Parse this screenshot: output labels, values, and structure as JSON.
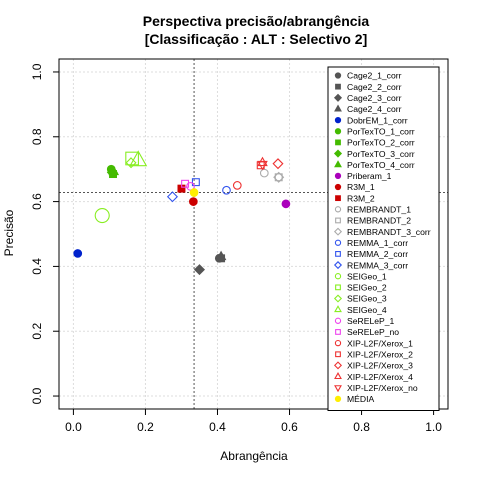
{
  "chart_data": {
    "type": "scatter",
    "title": "Perspectiva precisão/abrangência",
    "subtitle": "[Classificação : ALT : Selectivo 2]",
    "xlabel": "Abrangência",
    "ylabel": "Precisão",
    "xlim": [
      -0.04,
      1.04
    ],
    "ylim": [
      -0.04,
      1.04
    ],
    "xticks": [
      "0.0",
      "0.2",
      "0.4",
      "0.6",
      "0.8",
      "1.0"
    ],
    "yticks": [
      "0.0",
      "0.2",
      "0.4",
      "0.6",
      "0.8",
      "1.0"
    ],
    "grid": true,
    "legend_position": "top-right",
    "reference_lines": {
      "x": 0.335,
      "y": 0.628
    },
    "legend": [
      {
        "name": "Cage2_1_corr",
        "color": "#555555",
        "shape": "circle",
        "fill": true
      },
      {
        "name": "Cage2_2_corr",
        "color": "#555555",
        "shape": "square",
        "fill": true
      },
      {
        "name": "Cage2_3_corr",
        "color": "#555555",
        "shape": "diamond",
        "fill": true
      },
      {
        "name": "Cage2_4_corr",
        "color": "#555555",
        "shape": "triangle",
        "fill": true
      },
      {
        "name": "DobrEM_1_corr",
        "color": "#0022cc",
        "shape": "circle",
        "fill": true
      },
      {
        "name": "PorTexTO_1_corr",
        "color": "#44bb00",
        "shape": "circle",
        "fill": true
      },
      {
        "name": "PorTexTO_2_corr",
        "color": "#44bb00",
        "shape": "square",
        "fill": true
      },
      {
        "name": "PorTexTO_3_corr",
        "color": "#44bb00",
        "shape": "diamond",
        "fill": true
      },
      {
        "name": "PorTexTO_4_corr",
        "color": "#44bb00",
        "shape": "triangle",
        "fill": true
      },
      {
        "name": "Priberam_1",
        "color": "#aa00bb",
        "shape": "circle",
        "fill": true
      },
      {
        "name": "R3M_1",
        "color": "#cc0000",
        "shape": "circle",
        "fill": true
      },
      {
        "name": "R3M_2",
        "color": "#cc0000",
        "shape": "square",
        "fill": true
      },
      {
        "name": "REMBRANDT_1",
        "color": "#aaaaaa",
        "shape": "circle",
        "fill": false
      },
      {
        "name": "REMBRANDT_2",
        "color": "#aaaaaa",
        "shape": "square",
        "fill": false
      },
      {
        "name": "REMBRANDT_3_corr",
        "color": "#aaaaaa",
        "shape": "diamond",
        "fill": false
      },
      {
        "name": "REMMA_1_corr",
        "color": "#3355ee",
        "shape": "circle",
        "fill": false
      },
      {
        "name": "REMMA_2_corr",
        "color": "#3355ee",
        "shape": "square",
        "fill": false
      },
      {
        "name": "REMMA_3_corr",
        "color": "#3355ee",
        "shape": "diamond",
        "fill": false
      },
      {
        "name": "SEIGeo_1",
        "color": "#88ee22",
        "shape": "circle",
        "fill": false
      },
      {
        "name": "SEIGeo_2",
        "color": "#88ee22",
        "shape": "square",
        "fill": false
      },
      {
        "name": "SEIGeo_3",
        "color": "#88ee22",
        "shape": "diamond",
        "fill": false
      },
      {
        "name": "SEIGeo_4",
        "color": "#88ee22",
        "shape": "triangle",
        "fill": false
      },
      {
        "name": "SeRELeP_1",
        "color": "#ee44ee",
        "shape": "circle",
        "fill": false
      },
      {
        "name": "SeRELeP_no",
        "color": "#ee44ee",
        "shape": "square",
        "fill": false
      },
      {
        "name": "XIP-L2F/Xerox_1",
        "color": "#ee3333",
        "shape": "circle",
        "fill": false
      },
      {
        "name": "XIP-L2F/Xerox_2",
        "color": "#ee3333",
        "shape": "square",
        "fill": false
      },
      {
        "name": "XIP-L2F/Xerox_3",
        "color": "#ee3333",
        "shape": "diamond",
        "fill": false
      },
      {
        "name": "XIP-L2F/Xerox_4",
        "color": "#ee3333",
        "shape": "triangle",
        "fill": false
      },
      {
        "name": "XIP-L2F/Xerox_no",
        "color": "#ee3333",
        "shape": "triangle-down",
        "fill": false
      },
      {
        "name": "MÉDIA",
        "color": "#ffee00",
        "shape": "circle",
        "fill": true
      }
    ],
    "points": [
      {
        "series": "Cage2_1_corr",
        "x": 0.405,
        "y": 0.425,
        "color": "#555555",
        "shape": "circle",
        "fill": true,
        "size": 1
      },
      {
        "series": "Cage2_2_corr",
        "x": 0.41,
        "y": 0.425,
        "color": "#555555",
        "shape": "square",
        "fill": true,
        "size": 1
      },
      {
        "series": "Cage2_3_corr",
        "x": 0.35,
        "y": 0.39,
        "color": "#555555",
        "shape": "diamond",
        "fill": true,
        "size": 1
      },
      {
        "series": "Cage2_4_corr",
        "x": 0.41,
        "y": 0.43,
        "color": "#555555",
        "shape": "triangle",
        "fill": true,
        "size": 1
      },
      {
        "series": "DobrEM_1_corr",
        "x": 0.012,
        "y": 0.44,
        "color": "#0022cc",
        "shape": "circle",
        "fill": true,
        "size": 1
      },
      {
        "series": "PorTexTO_1_corr",
        "x": 0.105,
        "y": 0.7,
        "color": "#44bb00",
        "shape": "circle",
        "fill": true,
        "size": 1
      },
      {
        "series": "PorTexTO_2_corr",
        "x": 0.11,
        "y": 0.685,
        "color": "#44bb00",
        "shape": "square",
        "fill": true,
        "size": 1
      },
      {
        "series": "PorTexTO_3_corr",
        "x": 0.108,
        "y": 0.69,
        "color": "#44bb00",
        "shape": "diamond",
        "fill": true,
        "size": 1
      },
      {
        "series": "PorTexTO_4_corr",
        "x": 0.112,
        "y": 0.692,
        "color": "#44bb00",
        "shape": "triangle",
        "fill": true,
        "size": 1
      },
      {
        "series": "Priberam_1",
        "x": 0.59,
        "y": 0.593,
        "color": "#aa00bb",
        "shape": "circle",
        "fill": true,
        "size": 1
      },
      {
        "series": "R3M_1",
        "x": 0.333,
        "y": 0.6,
        "color": "#cc0000",
        "shape": "circle",
        "fill": true,
        "size": 1
      },
      {
        "series": "R3M_2",
        "x": 0.3,
        "y": 0.64,
        "color": "#cc0000",
        "shape": "square",
        "fill": true,
        "size": 1
      },
      {
        "series": "REMBRANDT_1",
        "x": 0.53,
        "y": 0.688,
        "color": "#aaaaaa",
        "shape": "circle",
        "fill": false,
        "size": 1
      },
      {
        "series": "REMBRANDT_2",
        "x": 0.57,
        "y": 0.675,
        "color": "#aaaaaa",
        "shape": "square",
        "fill": false,
        "size": 1
      },
      {
        "series": "REMBRANDT_3_corr",
        "x": 0.57,
        "y": 0.675,
        "color": "#aaaaaa",
        "shape": "diamond",
        "fill": false,
        "size": 1
      },
      {
        "series": "REMMA_1_corr",
        "x": 0.425,
        "y": 0.635,
        "color": "#3355ee",
        "shape": "circle",
        "fill": false,
        "size": 1
      },
      {
        "series": "REMMA_2_corr",
        "x": 0.34,
        "y": 0.66,
        "color": "#3355ee",
        "shape": "square",
        "fill": false,
        "size": 1
      },
      {
        "series": "REMMA_3_corr",
        "x": 0.275,
        "y": 0.615,
        "color": "#3355ee",
        "shape": "diamond",
        "fill": false,
        "size": 1
      },
      {
        "series": "SEIGeo_1",
        "x": 0.08,
        "y": 0.557,
        "color": "#88ee22",
        "shape": "circle",
        "fill": false,
        "size": 2
      },
      {
        "series": "SEIGeo_2",
        "x": 0.163,
        "y": 0.733,
        "color": "#88ee22",
        "shape": "square",
        "fill": false,
        "size": 2
      },
      {
        "series": "SEIGeo_3",
        "x": 0.16,
        "y": 0.72,
        "color": "#88ee22",
        "shape": "diamond",
        "fill": false,
        "size": 1
      },
      {
        "series": "SEIGeo_4",
        "x": 0.18,
        "y": 0.727,
        "color": "#88ee22",
        "shape": "triangle",
        "fill": false,
        "size": 2
      },
      {
        "series": "SeRELeP_1",
        "x": 0.325,
        "y": 0.647,
        "color": "#ee44ee",
        "shape": "circle",
        "fill": false,
        "size": 1
      },
      {
        "series": "SeRELeP_no",
        "x": 0.31,
        "y": 0.655,
        "color": "#ee44ee",
        "shape": "square",
        "fill": false,
        "size": 1
      },
      {
        "series": "XIP-L2F/Xerox_1",
        "x": 0.455,
        "y": 0.65,
        "color": "#ee3333",
        "shape": "circle",
        "fill": false,
        "size": 1
      },
      {
        "series": "XIP-L2F/Xerox_2",
        "x": 0.52,
        "y": 0.712,
        "color": "#ee3333",
        "shape": "square",
        "fill": false,
        "size": 1
      },
      {
        "series": "XIP-L2F/Xerox_3",
        "x": 0.568,
        "y": 0.717,
        "color": "#ee3333",
        "shape": "diamond",
        "fill": false,
        "size": 1
      },
      {
        "series": "XIP-L2F/Xerox_4",
        "x": 0.525,
        "y": 0.72,
        "color": "#ee3333",
        "shape": "triangle",
        "fill": false,
        "size": 1
      },
      {
        "series": "XIP-L2F/Xerox_no",
        "x": 0.525,
        "y": 0.715,
        "color": "#ee3333",
        "shape": "triangle-down",
        "fill": false,
        "size": 1
      },
      {
        "series": "MÉDIA",
        "x": 0.335,
        "y": 0.628,
        "color": "#ffee00",
        "shape": "circle",
        "fill": true,
        "size": 1
      }
    ]
  }
}
